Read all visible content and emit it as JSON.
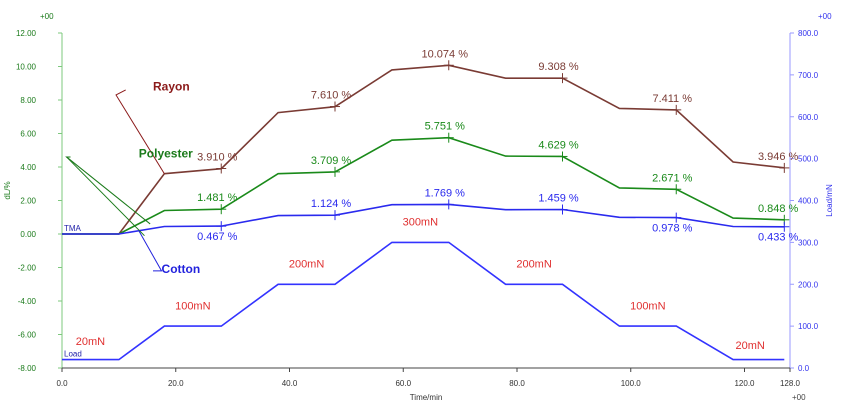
{
  "chart_data": {
    "type": "line",
    "corner_labels": {
      "top_left": "+00",
      "top_right": "+00",
      "bottom_right": "+00"
    },
    "xlabel": "Time/min",
    "ylabel_left": "dL/%",
    "ylabel_right": "Load/mN",
    "xlim": [
      0,
      128
    ],
    "ylim_left": [
      -8,
      12
    ],
    "ylim_right": [
      0,
      800
    ],
    "x_ticks": [
      "0.0",
      "20.0",
      "40.0",
      "60.0",
      "80.0",
      "100.0",
      "120.0",
      "128.0"
    ],
    "y_left_ticks": [
      "12.00",
      "10.00",
      "8.00",
      "6.00",
      "4.00",
      "2.00",
      "0.00",
      "-2.00",
      "-4.00",
      "-6.00",
      "-8.00"
    ],
    "y_right_ticks": [
      "800.0",
      "700.0",
      "600.0",
      "500.0",
      "400.0",
      "300.0",
      "200.0",
      "100.0",
      "0.0"
    ],
    "grid": false,
    "series": [
      {
        "name": "Rayon",
        "axis": "left",
        "color": "#7a3b34",
        "points": [
          [
            0,
            0
          ],
          [
            10,
            0
          ],
          [
            18,
            3.6
          ],
          [
            28,
            3.9
          ],
          [
            38,
            7.25
          ],
          [
            48,
            7.6
          ],
          [
            58,
            9.8
          ],
          [
            68,
            10.07
          ],
          [
            78,
            9.3
          ],
          [
            88,
            9.3
          ],
          [
            98,
            7.5
          ],
          [
            108,
            7.41
          ],
          [
            118,
            4.3
          ],
          [
            127,
            3.95
          ]
        ],
        "markers": [
          [
            28,
            3.91
          ],
          [
            48,
            7.61
          ],
          [
            68,
            10.074
          ],
          [
            88,
            9.308
          ],
          [
            108,
            7.411
          ],
          [
            127,
            3.946
          ]
        ],
        "labels": [
          "3.910 %",
          "7.610 %",
          "10.074 %",
          "9.308 %",
          "7.411 %",
          "3.946 %"
        ]
      },
      {
        "name": "Polyester",
        "axis": "left",
        "color": "#1a8a1a",
        "points": [
          [
            0,
            0
          ],
          [
            10,
            0
          ],
          [
            18,
            1.4
          ],
          [
            28,
            1.48
          ],
          [
            38,
            3.6
          ],
          [
            48,
            3.71
          ],
          [
            58,
            5.6
          ],
          [
            68,
            5.75
          ],
          [
            78,
            4.65
          ],
          [
            88,
            4.63
          ],
          [
            98,
            2.75
          ],
          [
            108,
            2.67
          ],
          [
            118,
            0.95
          ],
          [
            127,
            0.85
          ]
        ],
        "markers": [
          [
            28,
            1.481
          ],
          [
            48,
            3.709
          ],
          [
            68,
            5.751
          ],
          [
            88,
            4.629
          ],
          [
            108,
            2.671
          ],
          [
            127,
            0.848
          ]
        ],
        "labels": [
          "1.481 %",
          "3.709 %",
          "5.751 %",
          "4.629 %",
          "2.671 %",
          "0.848 %"
        ]
      },
      {
        "name": "Cotton",
        "axis": "left",
        "color": "#2a2aee",
        "points": [
          [
            0,
            0
          ],
          [
            10,
            0
          ],
          [
            18,
            0.45
          ],
          [
            28,
            0.47
          ],
          [
            38,
            1.1
          ],
          [
            48,
            1.12
          ],
          [
            58,
            1.75
          ],
          [
            68,
            1.77
          ],
          [
            78,
            1.45
          ],
          [
            88,
            1.46
          ],
          [
            98,
            1.0
          ],
          [
            108,
            0.98
          ],
          [
            118,
            0.45
          ],
          [
            127,
            0.43
          ]
        ],
        "markers": [
          [
            28,
            0.467
          ],
          [
            48,
            1.124
          ],
          [
            68,
            1.769
          ],
          [
            88,
            1.459
          ],
          [
            108,
            0.978
          ],
          [
            127,
            0.433
          ]
        ],
        "labels": [
          "0.467 %",
          "1.124 %",
          "1.769 %",
          "1.459 %",
          "0.978 %",
          "0.433 %"
        ]
      },
      {
        "name": "Load",
        "axis": "right",
        "color": "#3333ff",
        "points": [
          [
            0,
            20
          ],
          [
            10,
            20
          ],
          [
            18,
            100
          ],
          [
            28,
            100
          ],
          [
            38,
            200
          ],
          [
            48,
            200
          ],
          [
            58,
            300
          ],
          [
            68,
            300
          ],
          [
            78,
            200
          ],
          [
            88,
            200
          ],
          [
            98,
            100
          ],
          [
            108,
            100
          ],
          [
            118,
            20
          ],
          [
            127,
            20
          ]
        ],
        "step_labels": [
          {
            "text": "20mN",
            "x": 5,
            "y": 55
          },
          {
            "text": "100mN",
            "x": 23,
            "y": 140
          },
          {
            "text": "200mN",
            "x": 43,
            "y": 240
          },
          {
            "text": "300mN",
            "x": 63,
            "y": 340
          },
          {
            "text": "200mN",
            "x": 83,
            "y": 240
          },
          {
            "text": "100mN",
            "x": 103,
            "y": 140
          },
          {
            "text": "20mN",
            "x": 121,
            "y": 45
          }
        ]
      }
    ],
    "inline_labels": {
      "tma": "TMA",
      "load": "Load"
    },
    "callouts": [
      {
        "text": "Rayon",
        "color": "#8b1a1a",
        "label_at": [
          16,
          8.8
        ],
        "line_from": [
          11.2,
          8.6
        ],
        "line_to": [
          18,
          3.6
        ],
        "elbow": [
          9.5,
          8.3
        ]
      },
      {
        "text": "Polyester",
        "color": "#1a7a1a",
        "label_at": [
          13.5,
          4.8
        ],
        "line_from": [
          1.5,
          4.6
        ],
        "line_to": [
          15.5,
          0.6
        ],
        "elbow": [
          0.8,
          4.6
        ]
      },
      {
        "text": "Cotton",
        "color": "#2222dd",
        "label_at": [
          17.5,
          -2.1
        ],
        "line_from": [
          16,
          -2.2
        ],
        "line_to": [
          13.5,
          0.2
        ],
        "elbow": [
          17.5,
          -2.2
        ]
      }
    ]
  }
}
